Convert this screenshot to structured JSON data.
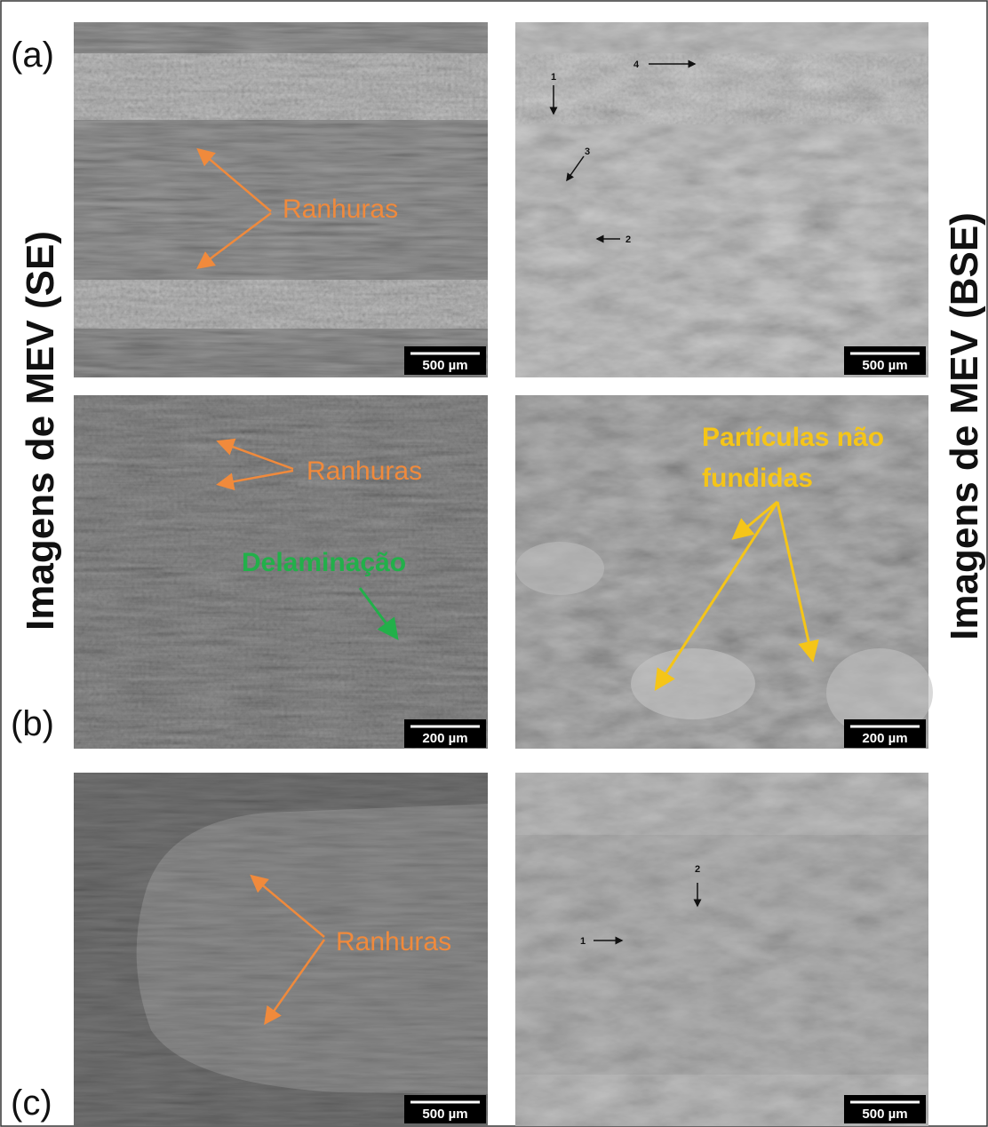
{
  "row_labels": [
    "(a)",
    "(b)",
    "(c)"
  ],
  "left_title": "Imagens de MEV (SE)",
  "right_title": "Imagens de MEV (BSE)",
  "panels": [
    {
      "scale_bar": "500 µm",
      "annotations": [
        "Ranhuras"
      ]
    },
    {
      "scale_bar": "500 µm",
      "markers": [
        "1",
        "2",
        "3",
        "4"
      ]
    },
    {
      "scale_bar": "200 µm",
      "annotations": [
        "Ranhuras",
        "Delaminação"
      ]
    },
    {
      "scale_bar": "200 µm",
      "annotations": [
        "Partículas não",
        "fundidas"
      ]
    },
    {
      "scale_bar": "500 µm",
      "annotations": [
        "Ranhuras"
      ]
    },
    {
      "scale_bar": "500 µm",
      "markers": [
        "1",
        "2"
      ]
    }
  ]
}
